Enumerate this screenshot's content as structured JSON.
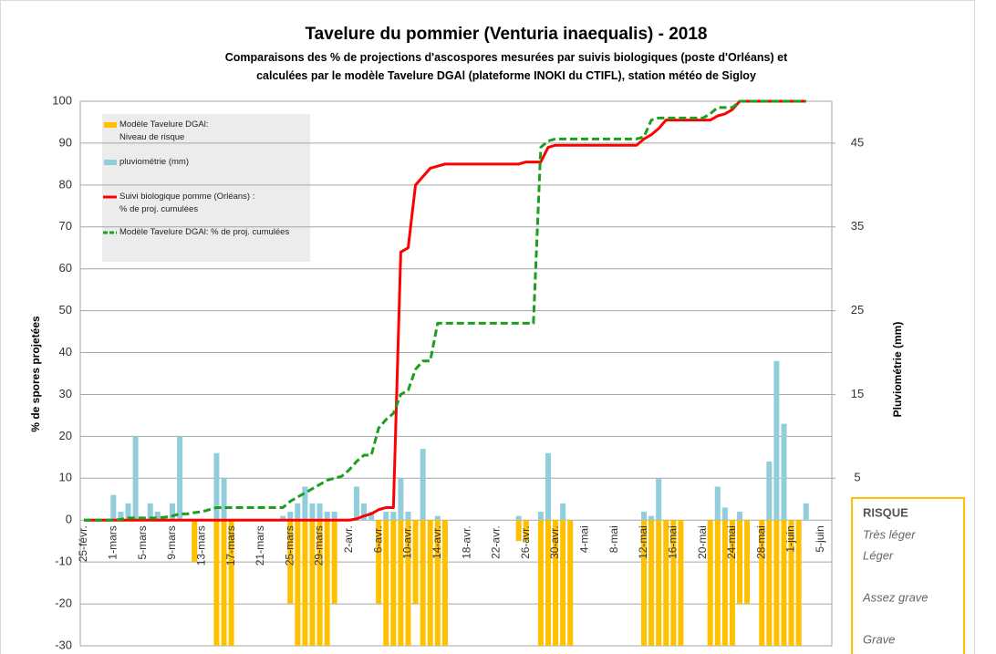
{
  "chart_data": {
    "type": "combo",
    "title": "Tavelure du pommier (Venturia inaequalis) - 2018",
    "subtitle": "Comparaisons des % de projections d'ascospores mesurées par suivis biologiques (poste d'Orléans) et\ncalculées par le modèle Tavelure DGAl (plateforme INOKI du CTIFL), station météo de Sigloy",
    "y_label": "% de spores projetées",
    "y2_label": "Pluviométrie (mm)",
    "categories": [
      "25-févr.",
      null,
      null,
      null,
      "1-mars",
      null,
      null,
      null,
      "5-mars",
      null,
      null,
      null,
      "9-mars",
      null,
      null,
      null,
      "13-mars",
      null,
      null,
      null,
      "17-mars",
      null,
      null,
      null,
      "21-mars",
      null,
      null,
      null,
      "25-mars",
      null,
      null,
      null,
      "29-mars",
      null,
      null,
      null,
      "2-avr.",
      null,
      null,
      null,
      "6-avr.",
      null,
      null,
      null,
      "10-avr.",
      null,
      null,
      null,
      "14-avr.",
      null,
      null,
      null,
      "18-avr.",
      null,
      null,
      null,
      "22-avr.",
      null,
      null,
      null,
      "26-avr.",
      null,
      null,
      null,
      "30-avr.",
      null,
      null,
      null,
      "4-mai",
      null,
      null,
      null,
      "8-mai",
      null,
      null,
      null,
      "12-mai",
      null,
      null,
      null,
      "16-mai",
      null,
      null,
      null,
      "20-mai",
      null,
      null,
      null,
      "24-mai",
      null,
      null,
      null,
      "28-mai",
      null,
      null,
      null,
      "1-juin",
      null,
      null,
      null,
      "5-juin",
      null
    ],
    "ylim": [
      -30,
      100
    ],
    "yticks": [
      -30,
      -20,
      -10,
      0,
      10,
      20,
      30,
      40,
      50,
      60,
      70,
      80,
      90,
      100
    ],
    "y2lim": [
      -15,
      50
    ],
    "y2ticks": [
      5,
      15,
      25,
      35,
      45
    ],
    "grid": true,
    "legend": "top-left",
    "series": [
      {
        "name": "Modèle Tavelure DGAl:\nNiveau de risque",
        "type": "bar",
        "axis": "y",
        "color": "#ffc000",
        "values": [
          0,
          0,
          0,
          0,
          0,
          0,
          0,
          0,
          0,
          0,
          0,
          0,
          0,
          0,
          0,
          -10,
          0,
          0,
          -30,
          -30,
          -30,
          0,
          0,
          0,
          0,
          0,
          0,
          0,
          -20,
          -30,
          -30,
          -30,
          -30,
          -30,
          -20,
          0,
          0,
          0,
          0,
          0,
          -20,
          -30,
          -30,
          -30,
          -30,
          -20,
          -30,
          -30,
          -30,
          -30,
          0,
          0,
          0,
          0,
          0,
          0,
          0,
          0,
          0,
          -5,
          -5,
          0,
          -30,
          -30,
          -30,
          -30,
          -30,
          0,
          0,
          0,
          0,
          0,
          0,
          0,
          0,
          0,
          -30,
          -30,
          -30,
          -30,
          -30,
          -30,
          0,
          0,
          0,
          -30,
          -30,
          -30,
          -30,
          -20,
          -20,
          0,
          -30,
          -30,
          -30,
          -30,
          -30,
          -30,
          0,
          0,
          0,
          0
        ]
      },
      {
        "name": "pluviométrie  (mm)",
        "type": "bar",
        "axis": "y2",
        "color": "#92cddc",
        "values": [
          0,
          0,
          0,
          0,
          3,
          1,
          2,
          10,
          0,
          2,
          1,
          0.5,
          2,
          10,
          0,
          0,
          0,
          0,
          8,
          5,
          0,
          0,
          0,
          0,
          0,
          0,
          0,
          0.5,
          1,
          2,
          4,
          2,
          2,
          1,
          1,
          0,
          0,
          4,
          2,
          1,
          0,
          1,
          1,
          5,
          1,
          0,
          8.5,
          0,
          0.5,
          0,
          0,
          0,
          0,
          0,
          0,
          0,
          0,
          0,
          0,
          0.5,
          0,
          0,
          1,
          8,
          0,
          2,
          0,
          0,
          0,
          0,
          0,
          0,
          0,
          0,
          0,
          0,
          1,
          0.5,
          5,
          0,
          0,
          0,
          0,
          0,
          0,
          0,
          4,
          1.5,
          0,
          1,
          0,
          0,
          0,
          7,
          19,
          11.5,
          0,
          0,
          2,
          0,
          0,
          0
        ]
      },
      {
        "name": "Suivi biologique pomme (Orléans) :\n% de proj. cumulées",
        "type": "line",
        "axis": "y",
        "color": "#ff0000",
        "dash": false,
        "values": [
          0,
          0,
          0,
          0,
          0,
          0,
          0,
          0,
          0,
          0,
          0,
          0,
          0,
          0,
          0,
          0,
          0,
          0,
          0,
          0,
          0,
          0,
          0,
          0,
          0,
          0,
          0,
          0,
          0,
          0,
          0,
          0,
          0,
          0,
          0,
          0,
          0,
          0.3,
          1,
          1.5,
          2.5,
          3,
          3,
          64,
          65,
          80,
          82,
          84,
          84.5,
          85,
          85,
          85,
          85,
          85,
          85,
          85,
          85,
          85,
          85,
          85,
          85.5,
          85.5,
          85.5,
          89,
          89.5,
          89.5,
          89.5,
          89.5,
          89.5,
          89.5,
          89.5,
          89.5,
          89.5,
          89.5,
          89.5,
          89.5,
          91,
          92,
          93.5,
          95.5,
          95.5,
          95.5,
          95.5,
          95.5,
          95.5,
          95.5,
          96.5,
          97,
          98,
          100,
          100,
          100,
          100,
          100,
          100,
          100,
          100,
          100,
          100,
          null,
          null,
          null
        ]
      },
      {
        "name": "Modèle Tavelure DGAl: % de proj. cumulées",
        "type": "line",
        "axis": "y",
        "color": "#1e9e1e",
        "dash": true,
        "values": [
          0,
          0,
          0,
          0,
          0,
          0.2,
          0.5,
          0.5,
          0.5,
          0.5,
          0.5,
          0.7,
          1,
          1.5,
          1.5,
          1.8,
          2,
          2.5,
          3,
          3,
          3,
          3,
          3,
          3,
          3,
          3,
          3,
          3,
          4.5,
          5.5,
          6.5,
          7.5,
          8.5,
          9.5,
          10,
          10.5,
          12,
          14,
          15.5,
          15.5,
          22,
          24,
          25.5,
          30,
          31,
          36,
          38,
          38,
          47,
          47,
          47,
          47,
          47,
          47,
          47,
          47,
          47,
          47,
          47,
          47,
          47,
          47,
          89,
          90.5,
          91,
          91,
          91,
          91,
          91,
          91,
          91,
          91,
          91,
          91,
          91,
          91,
          91.5,
          95.5,
          96,
          96,
          96,
          96,
          96,
          96,
          96,
          97,
          98.5,
          98.5,
          98.5,
          100,
          100,
          100,
          100,
          100,
          100,
          100,
          100,
          100,
          100,
          null,
          null,
          null
        ]
      }
    ],
    "risk_legend": {
      "title": "RISQUE",
      "levels": [
        {
          "label": "Très léger",
          "value": -5
        },
        {
          "label": "Léger",
          "value": -10
        },
        {
          "label": "Assez grave",
          "value": -20
        },
        {
          "label": "Grave",
          "value": -30
        }
      ]
    }
  }
}
